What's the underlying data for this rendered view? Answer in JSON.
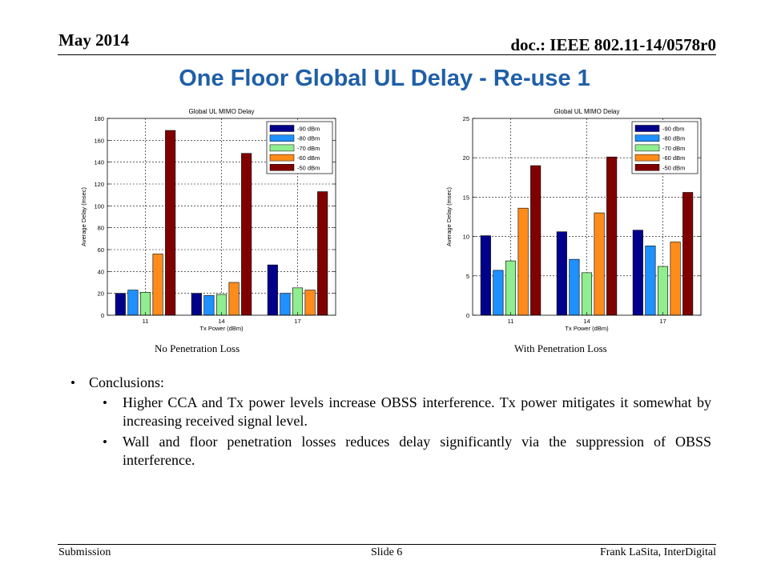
{
  "header": {
    "date": "May 2014",
    "doc": "doc.: IEEE 802.11-14/0578r0"
  },
  "title": "One Floor Global UL Delay - Re-use 1",
  "captions": {
    "left": "No Penetration Loss",
    "right": "With Penetration Loss"
  },
  "conclusions": {
    "heading": "Conclusions:",
    "items": [
      "Higher CCA and Tx power levels increase OBSS interference. Tx power mitigates it somewhat by increasing received signal level.",
      "Wall and floor penetration losses reduces delay significantly via the suppression of OBSS interference."
    ]
  },
  "footer": {
    "left": "Submission",
    "center": "Slide 6",
    "right": "Frank LaSita, InterDigital"
  },
  "colors": [
    "#00008b",
    "#1e90ff",
    "#90ee90",
    "#ff8c1a",
    "#800000"
  ],
  "chart_data": [
    {
      "type": "bar",
      "title": "Global UL MIMO Delay",
      "xlabel": "Tx Power (dBm)",
      "ylabel": "Average Delay (msec)",
      "ylim": [
        0,
        180
      ],
      "yticks": [
        0,
        20,
        40,
        60,
        80,
        100,
        120,
        140,
        160,
        180
      ],
      "grid": true,
      "legend": "top-right",
      "categories": [
        "11",
        "14",
        "17"
      ],
      "series": [
        {
          "name": "-90 dBm",
          "values": [
            20,
            20,
            46
          ]
        },
        {
          "name": "-80 dBm",
          "values": [
            23,
            18,
            20
          ]
        },
        {
          "name": "-70 dBm",
          "values": [
            21,
            19,
            25
          ]
        },
        {
          "name": "-60 dBm",
          "values": [
            56,
            30,
            23
          ]
        },
        {
          "name": "-50 dBm",
          "values": [
            169,
            148,
            113
          ]
        }
      ]
    },
    {
      "type": "bar",
      "title": "Global UL MIMO Delay",
      "xlabel": "Tx Power (dBm)",
      "ylabel": "Average Delay (msec)",
      "ylim": [
        0,
        25
      ],
      "yticks": [
        0,
        5,
        10,
        15,
        20,
        25
      ],
      "grid": true,
      "legend": "top-right",
      "categories": [
        "11",
        "14",
        "17"
      ],
      "series": [
        {
          "name": "-90 dbm",
          "values": [
            10.1,
            10.6,
            10.8
          ]
        },
        {
          "name": "-80 dBm",
          "values": [
            5.7,
            7.1,
            8.8
          ]
        },
        {
          "name": "-70 dBm",
          "values": [
            6.9,
            5.4,
            6.2
          ]
        },
        {
          "name": "-60 dBm",
          "values": [
            13.6,
            13,
            9.3
          ]
        },
        {
          "name": "-50 dBm",
          "values": [
            19,
            20.1,
            15.6
          ]
        }
      ]
    }
  ]
}
